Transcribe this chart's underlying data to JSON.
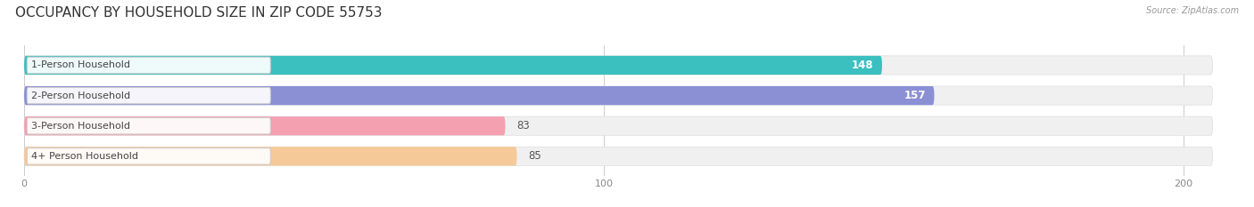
{
  "title": "OCCUPANCY BY HOUSEHOLD SIZE IN ZIP CODE 55753",
  "source": "Source: ZipAtlas.com",
  "categories": [
    "1-Person Household",
    "2-Person Household",
    "3-Person Household",
    "4+ Person Household"
  ],
  "values": [
    148,
    157,
    83,
    85
  ],
  "bar_colors": [
    "#3bbfbf",
    "#8b8fd4",
    "#f4a0b0",
    "#f5c998"
  ],
  "bar_bg_colors": [
    "#eeeeee",
    "#eeeeee",
    "#eeeeee",
    "#eeeeee"
  ],
  "value_colors": [
    "white",
    "white",
    "#666666",
    "#666666"
  ],
  "xlim": [
    -2,
    210
  ],
  "xticks": [
    0,
    100,
    200
  ],
  "title_fontsize": 11,
  "label_fontsize": 8,
  "value_fontsize": 8.5,
  "background_color": "#ffffff",
  "bar_area_bg": "#f7f7f7"
}
